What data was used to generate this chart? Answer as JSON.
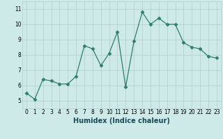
{
  "x": [
    0,
    1,
    2,
    3,
    4,
    5,
    6,
    7,
    8,
    9,
    10,
    11,
    12,
    13,
    14,
    15,
    16,
    17,
    18,
    19,
    20,
    21,
    22,
    23
  ],
  "y": [
    5.5,
    5.1,
    6.4,
    6.3,
    6.1,
    6.1,
    6.6,
    8.6,
    8.4,
    7.3,
    8.1,
    9.5,
    5.9,
    8.9,
    10.8,
    10.0,
    10.4,
    10.0,
    10.0,
    8.8,
    8.5,
    8.4,
    7.9,
    7.8
  ],
  "line_color": "#2e7d6e",
  "marker": "D",
  "marker_size": 2.5,
  "linewidth": 0.9,
  "bg_color": "#ceeae8",
  "grid_color": "#b0ceca",
  "xlabel": "Humidex (Indice chaleur)",
  "ylim": [
    4.5,
    11.5
  ],
  "xlim": [
    -0.5,
    23.5
  ],
  "yticks": [
    5,
    6,
    7,
    8,
    9,
    10,
    11
  ],
  "xticks": [
    0,
    1,
    2,
    3,
    4,
    5,
    6,
    7,
    8,
    9,
    10,
    11,
    12,
    13,
    14,
    15,
    16,
    17,
    18,
    19,
    20,
    21,
    22,
    23
  ],
  "tick_fontsize": 5.5,
  "xlabel_fontsize": 7.0,
  "xlabel_color": "#1a4a5a"
}
